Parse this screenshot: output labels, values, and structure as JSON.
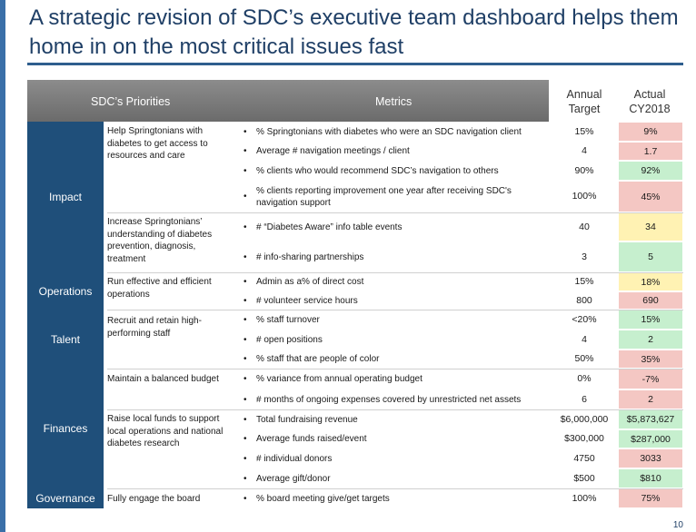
{
  "title": "A strategic revision of SDC’s executive team dashboard helps them home in on the most critical issues fast",
  "header": {
    "priorities": "SDC’s Priorities",
    "metrics": "Metrics",
    "annual_target": "Annual Target",
    "actual": "Actual CY2018"
  },
  "priorities": {
    "impact": "Impact",
    "operations": "Operations",
    "talent": "Talent",
    "finances": "Finances",
    "governance": "Governance"
  },
  "goals": [
    "Help Springtonians with diabetes to get access to resources and care",
    "Increase Springtonians’ understanding of diabetes prevention, diagnosis, treatment",
    "Run effective and efficient operations",
    "Recruit and retain high-performing staff",
    "Maintain a balanced budget",
    "Raise local funds to support local operations and national diabetes research",
    "Fully engage the board"
  ],
  "rows": [
    {
      "metric": "% Springtonians with diabetes who were an SDC navigation client",
      "target": "15%",
      "actual": "9%",
      "status": "red"
    },
    {
      "metric": "Average # navigation meetings / client",
      "target": "4",
      "actual": "1.7",
      "status": "red"
    },
    {
      "metric": "% clients who would recommend SDC’s navigation to others",
      "target": "90%",
      "actual": "92%",
      "status": "green"
    },
    {
      "metric": "% clients reporting improvement one year after receiving SDC's navigation support",
      "target": "100%",
      "actual": "45%",
      "status": "red"
    },
    {
      "metric": "# “Diabetes Aware” info table events",
      "target": "40",
      "actual": "34",
      "status": "yellow"
    },
    {
      "metric": "# info-sharing partnerships",
      "target": "3",
      "actual": "5",
      "status": "green"
    },
    {
      "metric": "Admin as a% of direct cost",
      "target": "15%",
      "actual": "18%",
      "status": "yellow"
    },
    {
      "metric": "# volunteer service hours",
      "target": "800",
      "actual": "690",
      "status": "red"
    },
    {
      "metric": "% staff turnover",
      "target": "<20%",
      "actual": "15%",
      "status": "green"
    },
    {
      "metric": "# open positions",
      "target": "4",
      "actual": "2",
      "status": "green"
    },
    {
      "metric": "% staff that are people of color",
      "target": "50%",
      "actual": "35%",
      "status": "red"
    },
    {
      "metric": "% variance from annual operating budget",
      "target": "0%",
      "actual": "-7%",
      "status": "red"
    },
    {
      "metric": "# months of ongoing expenses covered by unrestricted net assets",
      "target": "6",
      "actual": "2",
      "status": "red"
    },
    {
      "metric": "Total fundraising revenue",
      "target": "$6,000,000",
      "actual": "$5,873,627",
      "status": "green"
    },
    {
      "metric": "Average funds raised/event",
      "target": "$300,000",
      "actual": "$287,000",
      "status": "green"
    },
    {
      "metric": "# individual donors",
      "target": "4750",
      "actual": "3033",
      "status": "red"
    },
    {
      "metric": "Average gift/donor",
      "target": "$500",
      "actual": "$810",
      "status": "green"
    },
    {
      "metric": "% board meeting give/get targets",
      "target": "100%",
      "actual": "75%",
      "status": "red"
    }
  ],
  "page_number": "10",
  "colors": {
    "title": "#1f3f66",
    "priority_fill": "#1f4f7a",
    "green": "#c6efce",
    "red": "#f4c7c3",
    "yellow": "#fff2b3"
  }
}
